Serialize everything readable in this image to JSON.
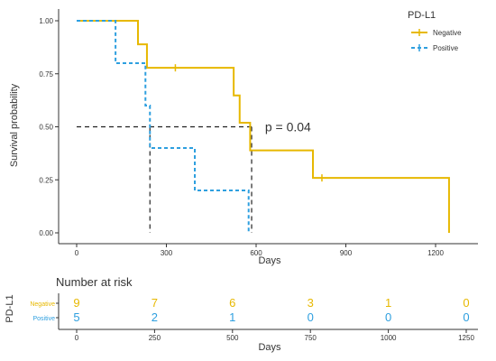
{
  "chart_data": {
    "type": "line",
    "subtype": "kaplan-meier",
    "xlabel": "Days",
    "ylabel": "Survival probability",
    "xlim": [
      0,
      1260
    ],
    "ylim": [
      0,
      1
    ],
    "x_ticks": [
      0,
      300,
      600,
      900,
      1200
    ],
    "y_ticks": [
      0,
      0.25,
      0.5,
      0.75,
      1
    ],
    "y_tick_labels": [
      "0.00",
      "0.25",
      "0.50",
      "0.75",
      "1.00"
    ],
    "legend": {
      "title": "PD-L1",
      "placement": "top-right"
    },
    "series": [
      {
        "name": "Negative",
        "color": "#E7B800",
        "line_style": "solid",
        "steps": [
          [
            0,
            1.0
          ],
          [
            205,
            0.889
          ],
          [
            235,
            0.778
          ],
          [
            525,
            0.648
          ],
          [
            545,
            0.519
          ],
          [
            580,
            0.389
          ],
          [
            790,
            0.259
          ],
          [
            1245,
            0.0
          ]
        ],
        "censor_marks": [
          [
            330,
            0.778
          ],
          [
            820,
            0.259
          ]
        ]
      },
      {
        "name": "Positive",
        "color": "#2E9FDF",
        "line_style": "dashed",
        "steps": [
          [
            0,
            1.0
          ],
          [
            130,
            0.8
          ],
          [
            230,
            0.6
          ],
          [
            245,
            0.4
          ],
          [
            395,
            0.2
          ],
          [
            575,
            0.0
          ]
        ],
        "censor_marks": []
      }
    ],
    "median_lines": {
      "y": 0.5,
      "x": [
        245,
        585
      ],
      "color": "#222222"
    },
    "annotation": "p = 0.04",
    "annotation_position": [
      690,
      0.5
    ],
    "risk_table": {
      "title": "Number at risk",
      "strata_label": "PD-L1",
      "xlabel": "Days",
      "times": [
        0,
        250,
        500,
        750,
        1000,
        1250
      ],
      "rows": [
        {
          "name": "Negative",
          "color": "#E7B800",
          "values": [
            9,
            7,
            6,
            3,
            1,
            0
          ]
        },
        {
          "name": "Positive",
          "color": "#2E9FDF",
          "values": [
            5,
            2,
            1,
            0,
            0,
            0
          ]
        }
      ]
    }
  }
}
